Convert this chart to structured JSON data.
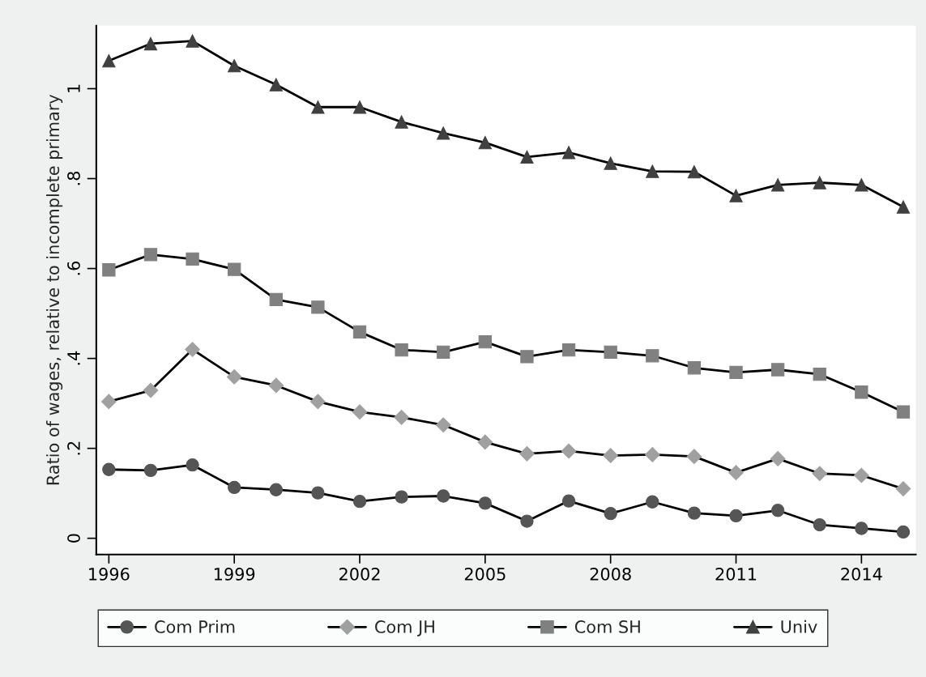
{
  "chart_data": {
    "type": "line",
    "ylabel": "Ratio of wages, relative to incomplete primary",
    "x": [
      1996,
      1997,
      1998,
      1999,
      2000,
      2001,
      2002,
      2003,
      2004,
      2005,
      2006,
      2007,
      2008,
      2009,
      2010,
      2011,
      2012,
      2013,
      2014,
      2015
    ],
    "series": [
      {
        "name": "Com Prim",
        "color": "#555555",
        "marker": "circle",
        "values": [
          0.153,
          0.151,
          0.163,
          0.113,
          0.108,
          0.101,
          0.082,
          0.092,
          0.094,
          0.078,
          0.038,
          0.083,
          0.055,
          0.081,
          0.056,
          0.05,
          0.062,
          0.03,
          0.022,
          0.014
        ]
      },
      {
        "name": "Com JH",
        "color": "#a0a0a0",
        "marker": "diamond",
        "values": [
          0.304,
          0.329,
          0.42,
          0.359,
          0.34,
          0.304,
          0.281,
          0.269,
          0.252,
          0.214,
          0.188,
          0.194,
          0.184,
          0.186,
          0.182,
          0.146,
          0.177,
          0.144,
          0.14,
          0.11
        ]
      },
      {
        "name": "Com SH",
        "color": "#808080",
        "marker": "square",
        "values": [
          0.597,
          0.631,
          0.621,
          0.598,
          0.531,
          0.514,
          0.459,
          0.419,
          0.414,
          0.437,
          0.404,
          0.419,
          0.414,
          0.406,
          0.379,
          0.369,
          0.375,
          0.365,
          0.325,
          0.281
        ]
      },
      {
        "name": "Univ",
        "color": "#404040",
        "marker": "triangle",
        "values": [
          1.062,
          1.1,
          1.106,
          1.051,
          1.009,
          0.959,
          0.959,
          0.926,
          0.901,
          0.88,
          0.848,
          0.858,
          0.834,
          0.816,
          0.815,
          0.762,
          0.786,
          0.791,
          0.786,
          0.737
        ]
      }
    ],
    "xlim": [
      1995.7,
      2015.3
    ],
    "xticks": [
      1996,
      1999,
      2002,
      2005,
      2008,
      2011,
      2014
    ],
    "ylim": [
      -0.036,
      1.14
    ],
    "yticks": [
      0,
      {
        "value": 0.2,
        "label": ".2"
      },
      {
        "value": 0.4,
        "label": ".4"
      },
      {
        "value": 0.6,
        "label": ".6"
      },
      {
        "value": 0.8,
        "label": ".8"
      },
      1
    ],
    "grid": false,
    "legend": "bottom",
    "line_style": "solid"
  }
}
